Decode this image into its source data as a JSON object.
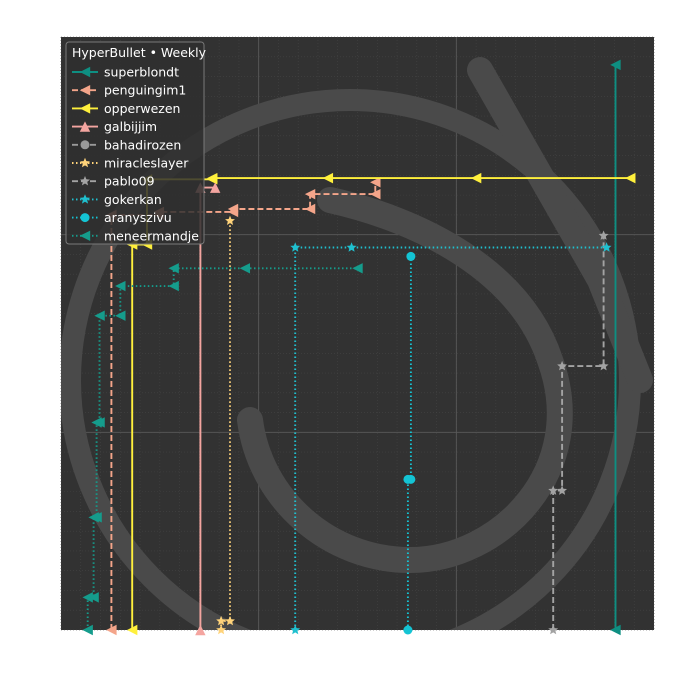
{
  "chart_data": {
    "type": "line",
    "legend": {
      "title": "HyperBullet • Weekly",
      "placement": "top-left"
    },
    "style": {
      "background": "#323232",
      "grid_major": "#5a5a5a",
      "grid_minor": "#444444",
      "watermark": "#4a4a4a",
      "legend_bg": "#2f2f2f",
      "legend_border": "#7a7a7a"
    },
    "xlim": [
      0,
      1
    ],
    "ylim": [
      0,
      1
    ],
    "series": [
      {
        "name": "superblondt",
        "color": "#0e8f82",
        "dash": "solid",
        "marker": "triangle-left",
        "points": [
          [
            0.935,
            0.0
          ],
          [
            0.935,
            0.953
          ]
        ]
      },
      {
        "name": "penguingim1",
        "color": "#f4a58a",
        "dash": "dashed",
        "marker": "triangle-left",
        "points": [
          [
            0.085,
            0.0
          ],
          [
            0.085,
            0.7
          ],
          [
            0.165,
            0.7
          ],
          [
            0.165,
            0.705
          ],
          [
            0.29,
            0.705
          ],
          [
            0.29,
            0.71
          ],
          [
            0.42,
            0.71
          ],
          [
            0.42,
            0.735
          ],
          [
            0.53,
            0.735
          ],
          [
            0.53,
            0.755
          ]
        ]
      },
      {
        "name": "opperwezen",
        "color": "#fff03c",
        "dash": "solid",
        "marker": "triangle-left",
        "points": [
          [
            0.12,
            0.0
          ],
          [
            0.12,
            0.65
          ],
          [
            0.145,
            0.65
          ],
          [
            0.145,
            0.76
          ],
          [
            0.255,
            0.76
          ],
          [
            0.255,
            0.762
          ],
          [
            0.45,
            0.762
          ],
          [
            0.7,
            0.762
          ],
          [
            0.96,
            0.762
          ]
        ]
      },
      {
        "name": "galbijjim",
        "color": "#f4a5a0",
        "dash": "solid",
        "marker": "triangle-up",
        "points": [
          [
            0.235,
            0.0
          ],
          [
            0.235,
            0.746
          ],
          [
            0.26,
            0.746
          ]
        ]
      },
      {
        "name": "bahadirozen",
        "color": "#9a9a9a",
        "dash": "dashed",
        "marker": "circle",
        "points": []
      },
      {
        "name": "miracleslayer",
        "color": "#ffd37a",
        "dash": "dotted",
        "marker": "star",
        "points": [
          [
            0.27,
            0.0
          ],
          [
            0.27,
            0.015
          ],
          [
            0.285,
            0.015
          ],
          [
            0.285,
            0.69
          ]
        ]
      },
      {
        "name": "pablo09",
        "color": "#a3a3a3",
        "dash": "dashed",
        "marker": "star",
        "points": [
          [
            0.83,
            0.0
          ],
          [
            0.83,
            0.235
          ],
          [
            0.845,
            0.235
          ],
          [
            0.845,
            0.445
          ],
          [
            0.915,
            0.445
          ],
          [
            0.915,
            0.665
          ]
        ]
      },
      {
        "name": "gokerkan",
        "color": "#1fc0cf",
        "dash": "dotted",
        "marker": "star",
        "points": [
          [
            0.395,
            0.0
          ],
          [
            0.395,
            0.645
          ],
          [
            0.49,
            0.645
          ],
          [
            0.92,
            0.645
          ]
        ]
      },
      {
        "name": "aranyszivu",
        "color": "#14c4d4",
        "dash": "dotted",
        "marker": "circle",
        "points": [
          [
            0.585,
            0.0
          ],
          [
            0.585,
            0.254
          ],
          [
            0.59,
            0.254
          ],
          [
            0.59,
            0.63
          ]
        ]
      },
      {
        "name": "meneermandje",
        "color": "#159c8c",
        "dash": "dotted",
        "marker": "triangle-left",
        "points": [
          [
            0.045,
            0.0
          ],
          [
            0.045,
            0.055
          ],
          [
            0.055,
            0.055
          ],
          [
            0.055,
            0.19
          ],
          [
            0.06,
            0.19
          ],
          [
            0.06,
            0.35
          ],
          [
            0.065,
            0.35
          ],
          [
            0.065,
            0.53
          ],
          [
            0.1,
            0.53
          ],
          [
            0.1,
            0.58
          ],
          [
            0.19,
            0.58
          ],
          [
            0.19,
            0.61
          ],
          [
            0.31,
            0.61
          ],
          [
            0.5,
            0.61
          ]
        ]
      }
    ]
  }
}
